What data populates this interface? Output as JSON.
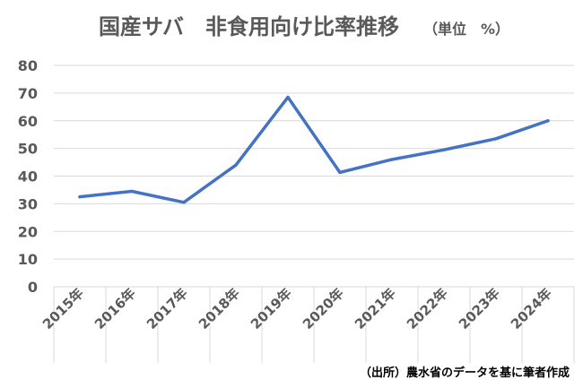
{
  "chart_data": {
    "type": "line",
    "title": "国産サバ　非食用向け比率推移",
    "subtitle": "（単位　%）",
    "xlabel": "",
    "ylabel": "",
    "categories": [
      "2015年",
      "2016年",
      "2017年",
      "2018年",
      "2019年",
      "2020年",
      "2021年",
      "2022年",
      "2023年",
      "2024年"
    ],
    "series": [
      {
        "values": [
          32.5,
          34.5,
          30.5,
          44,
          68.5,
          41.3,
          46,
          49.5,
          53.5,
          60
        ]
      }
    ],
    "ylim": [
      0,
      80
    ],
    "yticks": [
      0,
      10,
      20,
      30,
      40,
      50,
      60,
      70,
      80
    ],
    "grid": true,
    "legend": "none",
    "line_color": "#4472C4",
    "grid_color": "#D9D9D9",
    "text_color": "#595959"
  },
  "source_note": "（出所）農水省のデータを基に筆者作成"
}
